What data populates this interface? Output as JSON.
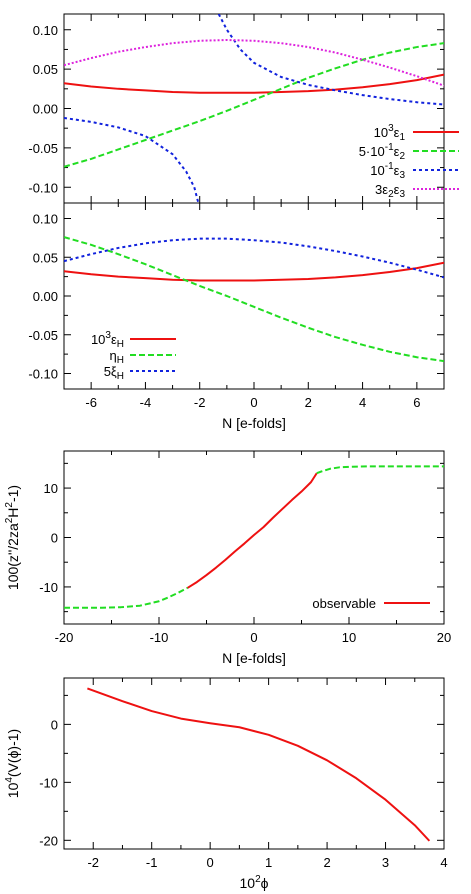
{
  "colors": {
    "red": "#ee1111",
    "green": "#22dd22",
    "blue": "#1122dd",
    "magenta": "#dd22dd"
  },
  "chart_data": [
    {
      "type": "line",
      "panel": "top",
      "xlim": [
        -7,
        7
      ],
      "ylim": [
        -0.12,
        0.12
      ],
      "yticks": [
        "0.10",
        "0.05",
        "0.00",
        "-0.05",
        "-0.10"
      ],
      "legend": "bottom-right",
      "series": [
        {
          "name": "10³ε₁",
          "legend_html": "10<tspan dy='-6' font-size='10'>3</tspan><tspan dy='6'>ε</tspan><tspan dy='3' font-size='10'>1</tspan>",
          "color": "red",
          "dash": "",
          "x": [
            -7,
            -6,
            -5,
            -4,
            -3,
            -2,
            -1,
            0,
            1,
            2,
            3,
            4,
            5,
            6,
            7
          ],
          "y": [
            0.032,
            0.028,
            0.025,
            0.023,
            0.021,
            0.02,
            0.02,
            0.02,
            0.021,
            0.022,
            0.024,
            0.027,
            0.031,
            0.036,
            0.043
          ]
        },
        {
          "name": "5·10⁻¹ε₂",
          "legend_html": "5·10<tspan dy='-6' font-size='10'>-1</tspan><tspan dy='6'>ε</tspan><tspan dy='3' font-size='10'>2</tspan>",
          "color": "green",
          "dash": "6,3",
          "x": [
            -7,
            -6,
            -5,
            -4,
            -3,
            -2,
            -1,
            0,
            1,
            2,
            3,
            4,
            5,
            6,
            7
          ],
          "y": [
            -0.074,
            -0.064,
            -0.052,
            -0.04,
            -0.028,
            -0.016,
            -0.003,
            0.011,
            0.025,
            0.039,
            0.051,
            0.062,
            0.071,
            0.078,
            0.083
          ]
        },
        {
          "name": "10⁻¹ε₃",
          "legend_html": "10<tspan dy='-6' font-size='10'>-1</tspan><tspan dy='6'>ε</tspan><tspan dy='3' font-size='10'>3</tspan>",
          "color": "blue",
          "dash": "3,3",
          "x": [
            -7,
            -6,
            -5,
            -4,
            -3,
            -2.5,
            -2.2,
            -2.05,
            null,
            -1.3,
            -1.0,
            -0.5,
            0,
            1,
            2,
            3,
            4,
            5,
            6,
            7
          ],
          "y": [
            -0.012,
            -0.017,
            -0.024,
            -0.035,
            -0.058,
            -0.08,
            -0.1,
            -0.12,
            null,
            0.12,
            0.1,
            0.075,
            0.058,
            0.04,
            0.03,
            0.023,
            0.017,
            0.012,
            0.008,
            0.005
          ]
        },
        {
          "name": "3ε₂ε₃",
          "legend_html": "3ε<tspan dy='3' font-size='10'>2</tspan><tspan dy='-3'>ε</tspan><tspan dy='3' font-size='10'>3</tspan>",
          "color": "magenta",
          "dash": "2,2",
          "x": [
            -7,
            -6,
            -5,
            -4,
            -3,
            -2,
            -1,
            0,
            1,
            2,
            3,
            4,
            5,
            6,
            7
          ],
          "y": [
            0.055,
            0.064,
            0.072,
            0.078,
            0.083,
            0.086,
            0.087,
            0.086,
            0.083,
            0.078,
            0.071,
            0.062,
            0.052,
            0.041,
            0.029
          ]
        }
      ]
    },
    {
      "type": "line",
      "panel": "middle",
      "xlim": [
        -7,
        7
      ],
      "ylim": [
        -0.12,
        0.12
      ],
      "xlabel": "N [e-folds]",
      "xticks": [
        "-6",
        "-4",
        "-2",
        "0",
        "2",
        "4",
        "6"
      ],
      "yticks": [
        "0.10",
        "0.05",
        "0.00",
        "-0.05",
        "-0.10"
      ],
      "legend": "bottom-left",
      "series": [
        {
          "name": "10³εH",
          "legend_html": "10<tspan dy='-6' font-size='10'>3</tspan><tspan dy='6'>ε</tspan><tspan dy='3' font-size='10'>H</tspan>",
          "color": "red",
          "dash": "",
          "x": [
            -7,
            -6,
            -5,
            -4,
            -3,
            -2,
            -1,
            0,
            1,
            2,
            3,
            4,
            5,
            6,
            7
          ],
          "y": [
            0.032,
            0.028,
            0.025,
            0.023,
            0.021,
            0.02,
            0.02,
            0.02,
            0.021,
            0.022,
            0.024,
            0.027,
            0.031,
            0.036,
            0.043
          ]
        },
        {
          "name": "ηH",
          "legend_html": "η<tspan dy='3' font-size='10'>H</tspan>",
          "color": "green",
          "dash": "6,3",
          "x": [
            -7,
            -6,
            -5,
            -4,
            -3,
            -2,
            -1,
            0,
            1,
            2,
            3,
            4,
            5,
            6,
            7
          ],
          "y": [
            0.076,
            0.066,
            0.054,
            0.041,
            0.027,
            0.013,
            0.0,
            -0.014,
            -0.028,
            -0.041,
            -0.053,
            -0.063,
            -0.072,
            -0.079,
            -0.084
          ]
        },
        {
          "name": "5ξH",
          "legend_html": "5ξ<tspan dy='3' font-size='10'>H</tspan>",
          "color": "blue",
          "dash": "3,3",
          "x": [
            -7,
            -6,
            -5,
            -4,
            -3,
            -2,
            -1,
            0,
            1,
            2,
            3,
            4,
            5,
            6,
            7
          ],
          "y": [
            0.045,
            0.054,
            0.062,
            0.068,
            0.072,
            0.074,
            0.074,
            0.072,
            0.069,
            0.064,
            0.058,
            0.051,
            0.043,
            0.034,
            0.024
          ]
        }
      ]
    },
    {
      "type": "line",
      "panel": "third",
      "xlim": [
        -20,
        20
      ],
      "ylim": [
        -17.5,
        17.5
      ],
      "xlabel": "N [e-folds]",
      "ylabel": "100(z''/2za²H²-1)",
      "ylabel_html": "100(z''/2za<tspan dy='-6' font-size='10'>2</tspan><tspan dy='6'>H</tspan><tspan dy='-6' font-size='10'>2</tspan><tspan dy='6'>-1)</tspan>",
      "xticks": [
        "-20",
        "-10",
        "0",
        "10",
        "20"
      ],
      "yticks": [
        "10",
        "0",
        "-10"
      ],
      "legend": "bottom-right",
      "series": [
        {
          "name": "observable",
          "legend_html": "observable",
          "color": "red",
          "dash": "",
          "x": [
            -7,
            -6,
            -5,
            -4,
            -3,
            -2,
            -1,
            0,
            1,
            2,
            3,
            4,
            5,
            6,
            6.6
          ],
          "y": [
            -10.2,
            -9.0,
            -7.6,
            -6.1,
            -4.5,
            -2.8,
            -1.2,
            0.5,
            2.1,
            4.0,
            5.8,
            7.6,
            9.3,
            11.2,
            13.0
          ]
        },
        {
          "name": "",
          "color": "green",
          "dash": "6,3",
          "x": [
            -20,
            -18,
            -16,
            -14,
            -12,
            -10,
            -9,
            -8,
            -7
          ],
          "y": [
            -14.2,
            -14.2,
            -14.2,
            -14.1,
            -13.8,
            -12.9,
            -12.1,
            -11.2,
            -10.2
          ]
        },
        {
          "name": "",
          "color": "green",
          "dash": "6,3",
          "x": [
            6.6,
            7,
            8,
            9,
            10,
            12,
            14,
            16,
            18,
            20
          ],
          "y": [
            13.0,
            13.3,
            13.9,
            14.2,
            14.3,
            14.4,
            14.4,
            14.4,
            14.4,
            14.4
          ]
        }
      ]
    },
    {
      "type": "line",
      "panel": "bottom",
      "xlim": [
        -2.5,
        4
      ],
      "ylim": [
        -21.5,
        8
      ],
      "xlabel": "10²ϕ",
      "xlabel_html": "10<tspan dy='-6' font-size='10'>2</tspan><tspan dy='6'>ϕ</tspan>",
      "ylabel": "10⁴(V(ϕ)-1)",
      "ylabel_html": "10<tspan dy='-6' font-size='10'>4</tspan><tspan dy='6'>(V(ϕ)-1)</tspan>",
      "xticks": [
        "-2",
        "-1",
        "0",
        "1",
        "2",
        "3",
        "4"
      ],
      "yticks": [
        "0",
        "-10",
        "-20"
      ],
      "series": [
        {
          "name": "",
          "color": "red",
          "dash": "",
          "x": [
            -2.1,
            -1.5,
            -1.0,
            -0.5,
            0.0,
            0.5,
            1.0,
            1.5,
            2.0,
            2.5,
            3.0,
            3.5,
            3.75
          ],
          "y": [
            6.2,
            4.0,
            2.3,
            1.0,
            0.2,
            -0.5,
            -1.8,
            -3.7,
            -6.2,
            -9.3,
            -13.0,
            -17.4,
            -20.1
          ]
        }
      ]
    }
  ]
}
